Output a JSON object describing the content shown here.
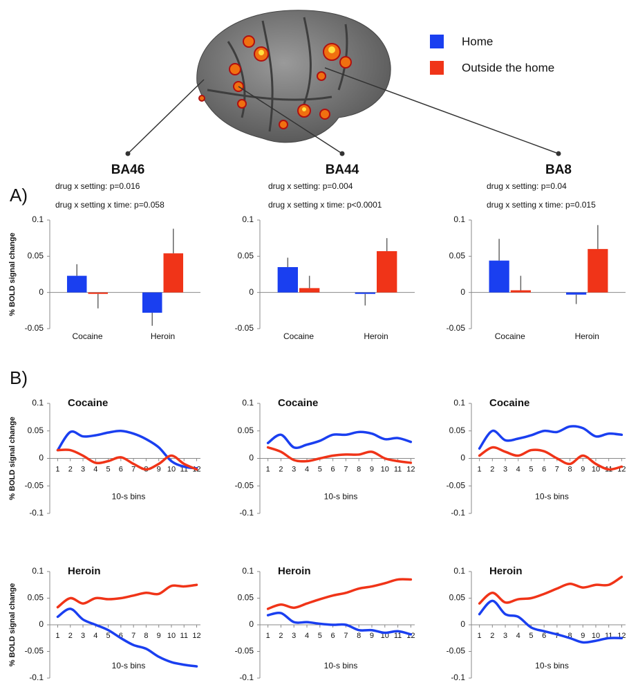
{
  "panel_labels": [
    "A)",
    "B)"
  ],
  "chart_data": [
    {
      "type": "bar",
      "title": "BA46",
      "annotations": [
        "drug x setting: p=0.016",
        "drug x setting x time: p=0.058"
      ],
      "ylabel": "% BOLD signal change",
      "categories": [
        "Cocaine",
        "Heroin"
      ],
      "ylim": [
        -0.05,
        0.1
      ],
      "yticks": [
        -0.05,
        0,
        0.05,
        0.1
      ],
      "series": [
        {
          "name": "Home",
          "color": "#1a3ff0",
          "values": [
            0.023,
            -0.028
          ],
          "errors": [
            0.016,
            0.018
          ]
        },
        {
          "name": "Outside the home",
          "color": "#f03418",
          "values": [
            -0.002,
            0.054
          ],
          "errors": [
            0.02,
            0.034
          ]
        }
      ]
    },
    {
      "type": "bar",
      "title": "BA44",
      "annotations": [
        "drug x setting: p=0.004",
        "drug x setting x time: p<0.0001"
      ],
      "categories": [
        "Cocaine",
        "Heroin"
      ],
      "ylim": [
        -0.05,
        0.1
      ],
      "yticks": [
        -0.05,
        0,
        0.05,
        0.1
      ],
      "series": [
        {
          "name": "Home",
          "color": "#1a3ff0",
          "values": [
            0.035,
            -0.002
          ],
          "errors": [
            0.013,
            0.016
          ]
        },
        {
          "name": "Outside the home",
          "color": "#f03418",
          "values": [
            0.006,
            0.057
          ],
          "errors": [
            0.017,
            0.018
          ]
        }
      ]
    },
    {
      "type": "bar",
      "title": "BA8",
      "annotations": [
        "drug x setting: p=0.04",
        "drug x setting x time: p=0.015"
      ],
      "categories": [
        "Cocaine",
        "Heroin"
      ],
      "ylim": [
        -0.05,
        0.1
      ],
      "yticks": [
        -0.05,
        0,
        0.05,
        0.1
      ],
      "series": [
        {
          "name": "Home",
          "color": "#1a3ff0",
          "values": [
            0.044,
            -0.003
          ],
          "errors": [
            0.03,
            0.013
          ]
        },
        {
          "name": "Outside the home",
          "color": "#f03418",
          "values": [
            0.003,
            0.06
          ],
          "errors": [
            0.02,
            0.033
          ]
        }
      ]
    },
    {
      "type": "line",
      "title": "Cocaine",
      "xlabel": "10-s bins",
      "ylabel": "% BOLD signal change",
      "x": [
        1,
        2,
        3,
        4,
        5,
        6,
        7,
        8,
        9,
        10,
        11,
        12
      ],
      "xlim": [
        0.7,
        12.3
      ],
      "xticks": [
        1,
        2,
        3,
        4,
        5,
        6,
        7,
        8,
        9,
        10,
        11,
        12
      ],
      "ylim": [
        -0.1,
        0.1
      ],
      "yticks": [
        -0.1,
        -0.05,
        0,
        0.05,
        0.1
      ],
      "series": [
        {
          "name": "Home",
          "color": "#1a3ff0",
          "values": [
            0.015,
            0.048,
            0.04,
            0.042,
            0.047,
            0.05,
            0.045,
            0.035,
            0.02,
            -0.005,
            -0.015,
            -0.018
          ]
        },
        {
          "name": "Outside the home",
          "color": "#f03418",
          "values": [
            0.015,
            0.015,
            0.005,
            -0.008,
            -0.005,
            0.002,
            -0.01,
            -0.02,
            -0.01,
            0.005,
            -0.01,
            -0.02
          ]
        }
      ]
    },
    {
      "type": "line",
      "title": "Cocaine",
      "xlabel": "10-s bins",
      "x": [
        1,
        2,
        3,
        4,
        5,
        6,
        7,
        8,
        9,
        10,
        11,
        12
      ],
      "xlim": [
        0.7,
        12.3
      ],
      "xticks": [
        1,
        2,
        3,
        4,
        5,
        6,
        7,
        8,
        9,
        10,
        11,
        12
      ],
      "ylim": [
        -0.1,
        0.1
      ],
      "yticks": [
        -0.1,
        -0.05,
        0,
        0.05,
        0.1
      ],
      "series": [
        {
          "name": "Home",
          "color": "#1a3ff0",
          "values": [
            0.028,
            0.043,
            0.02,
            0.025,
            0.032,
            0.043,
            0.043,
            0.048,
            0.045,
            0.035,
            0.037,
            0.03
          ]
        },
        {
          "name": "Outside the home",
          "color": "#f03418",
          "values": [
            0.02,
            0.012,
            -0.003,
            -0.005,
            0,
            0.005,
            0.007,
            0.007,
            0.012,
            0,
            -0.005,
            -0.008
          ]
        }
      ]
    },
    {
      "type": "line",
      "title": "Cocaine",
      "xlabel": "10-s bins",
      "x": [
        1,
        2,
        3,
        4,
        5,
        6,
        7,
        8,
        9,
        10,
        11,
        12
      ],
      "xlim": [
        0.7,
        12.3
      ],
      "xticks": [
        1,
        2,
        3,
        4,
        5,
        6,
        7,
        8,
        9,
        10,
        11,
        12
      ],
      "ylim": [
        -0.1,
        0.1
      ],
      "yticks": [
        -0.1,
        -0.05,
        0,
        0.05,
        0.1
      ],
      "series": [
        {
          "name": "Home",
          "color": "#1a3ff0",
          "values": [
            0.018,
            0.05,
            0.033,
            0.036,
            0.042,
            0.05,
            0.048,
            0.058,
            0.055,
            0.04,
            0.045,
            0.043
          ]
        },
        {
          "name": "Outside the home",
          "color": "#f03418",
          "values": [
            0.005,
            0.02,
            0.012,
            0.005,
            0.015,
            0.013,
            0,
            -0.01,
            0.005,
            -0.01,
            -0.02,
            -0.015
          ]
        }
      ]
    },
    {
      "type": "line",
      "title": "Heroin",
      "xlabel": "10-s bins",
      "ylabel": "% BOLD signal change",
      "x": [
        1,
        2,
        3,
        4,
        5,
        6,
        7,
        8,
        9,
        10,
        11,
        12
      ],
      "xlim": [
        0.7,
        12.3
      ],
      "xticks": [
        1,
        2,
        3,
        4,
        5,
        6,
        7,
        8,
        9,
        10,
        11,
        12
      ],
      "ylim": [
        -0.1,
        0.1
      ],
      "yticks": [
        -0.1,
        -0.05,
        0,
        0.05,
        0.1
      ],
      "series": [
        {
          "name": "Home",
          "color": "#1a3ff0",
          "values": [
            0.015,
            0.03,
            0.01,
            0,
            -0.01,
            -0.025,
            -0.038,
            -0.045,
            -0.06,
            -0.07,
            -0.075,
            -0.078
          ]
        },
        {
          "name": "Outside the home",
          "color": "#f03418",
          "values": [
            0.033,
            0.05,
            0.04,
            0.05,
            0.048,
            0.05,
            0.055,
            0.06,
            0.058,
            0.073,
            0.072,
            0.075
          ]
        }
      ]
    },
    {
      "type": "line",
      "title": "Heroin",
      "xlabel": "10-s bins",
      "x": [
        1,
        2,
        3,
        4,
        5,
        6,
        7,
        8,
        9,
        10,
        11,
        12
      ],
      "xlim": [
        0.7,
        12.3
      ],
      "xticks": [
        1,
        2,
        3,
        4,
        5,
        6,
        7,
        8,
        9,
        10,
        11,
        12
      ],
      "ylim": [
        -0.1,
        0.1
      ],
      "yticks": [
        -0.1,
        -0.05,
        0,
        0.05,
        0.1
      ],
      "series": [
        {
          "name": "Home",
          "color": "#1a3ff0",
          "values": [
            0.018,
            0.022,
            0.005,
            0.005,
            0.002,
            0,
            0,
            -0.01,
            -0.01,
            -0.015,
            -0.012,
            -0.018
          ]
        },
        {
          "name": "Outside the home",
          "color": "#f03418",
          "values": [
            0.03,
            0.038,
            0.032,
            0.04,
            0.048,
            0.055,
            0.06,
            0.068,
            0.072,
            0.078,
            0.085,
            0.085
          ]
        }
      ]
    },
    {
      "type": "line",
      "title": "Heroin",
      "xlabel": "10-s bins",
      "x": [
        1,
        2,
        3,
        4,
        5,
        6,
        7,
        8,
        9,
        10,
        11,
        12
      ],
      "xlim": [
        0.7,
        12.3
      ],
      "xticks": [
        1,
        2,
        3,
        4,
        5,
        6,
        7,
        8,
        9,
        10,
        11,
        12
      ],
      "ylim": [
        -0.1,
        0.1
      ],
      "yticks": [
        -0.1,
        -0.05,
        0,
        0.05,
        0.1
      ],
      "series": [
        {
          "name": "Home",
          "color": "#1a3ff0",
          "values": [
            0.02,
            0.045,
            0.02,
            0.015,
            -0.005,
            -0.012,
            -0.018,
            -0.025,
            -0.033,
            -0.03,
            -0.025,
            -0.025
          ]
        },
        {
          "name": "Outside the home",
          "color": "#f03418",
          "values": [
            0.04,
            0.06,
            0.042,
            0.048,
            0.05,
            0.058,
            0.068,
            0.077,
            0.07,
            0.075,
            0.075,
            0.09
          ]
        }
      ]
    }
  ]
}
